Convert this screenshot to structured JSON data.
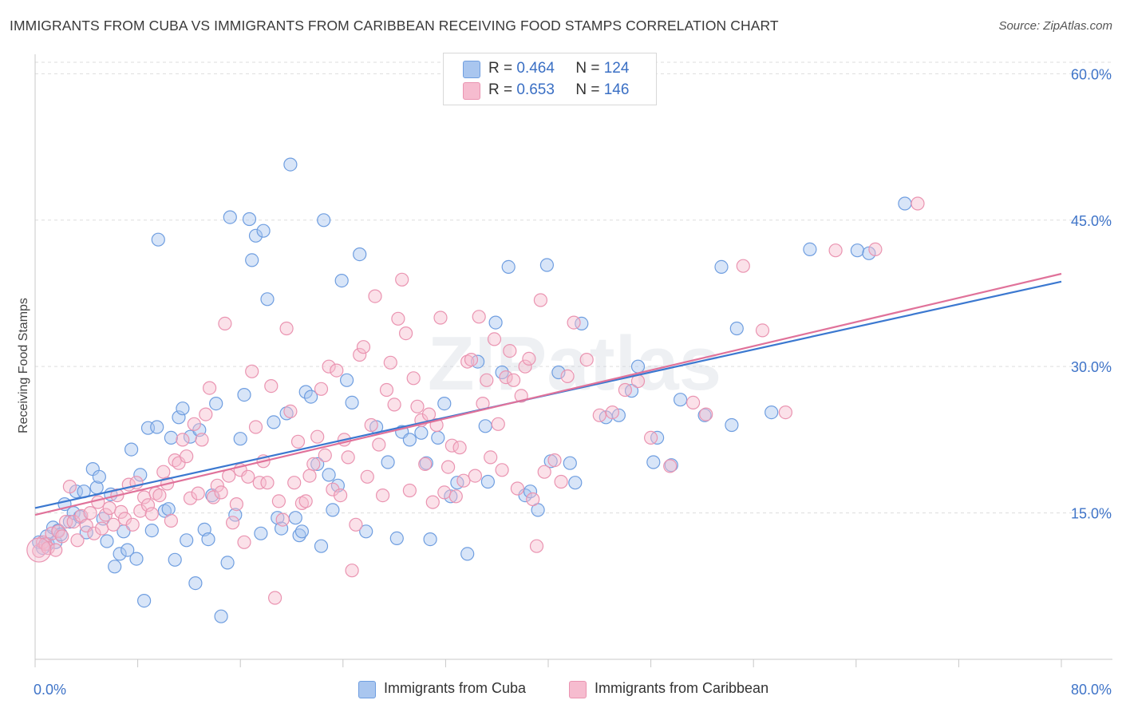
{
  "title": "IMMIGRANTS FROM CUBA VS IMMIGRANTS FROM CARIBBEAN RECEIVING FOOD STAMPS CORRELATION CHART",
  "source": "Source: ZipAtlas.com",
  "watermark": "ZIPatlas",
  "legend": {
    "r_label": "R =",
    "n_label": "N =",
    "cuba": {
      "r": "0.464",
      "n": "124"
    },
    "caribbean": {
      "r": "0.653",
      "n": "146"
    }
  },
  "colors": {
    "cuba_fill": "#a9c6ef",
    "cuba_stroke": "#6f9ee0",
    "cuba_line": "#3b78d0",
    "caribbean_fill": "#f6bccf",
    "caribbean_stroke": "#ea94b1",
    "caribbean_line": "#e0729a",
    "tick_label": "#3f74c8",
    "grid": "#dddddd"
  },
  "chart_data": {
    "type": "scatter",
    "title": "IMMIGRANTS FROM CUBA VS IMMIGRANTS FROM CARIBBEAN RECEIVING FOOD STAMPS CORRELATION CHART",
    "xlabel": "",
    "ylabel": "Receiving Food Stamps",
    "xlim": [
      0,
      80
    ],
    "ylim": [
      0,
      61.5
    ],
    "x_tick_labels": [
      "0.0%",
      "80.0%"
    ],
    "y_ticks": [
      15,
      30,
      45,
      60
    ],
    "y_tick_labels": [
      "15.0%",
      "30.0%",
      "45.0%",
      "60.0%"
    ],
    "grid": "horizontal dashed",
    "legend_position": "top-center and bottom",
    "series": [
      {
        "name": "Immigrants from Cuba",
        "r": 0.464,
        "n": 124,
        "trend": {
          "x": [
            0,
            80
          ],
          "y": [
            15.5,
            38.7
          ]
        },
        "points": [
          [
            0.3,
            12.0
          ],
          [
            0.6,
            11.4
          ],
          [
            0.9,
            12.6
          ],
          [
            1.0,
            11.8
          ],
          [
            1.4,
            13.5
          ],
          [
            1.6,
            12.0
          ],
          [
            1.8,
            13.2
          ],
          [
            2.0,
            12.8
          ],
          [
            2.3,
            15.9
          ],
          [
            2.7,
            14.1
          ],
          [
            3.0,
            15.0
          ],
          [
            3.2,
            17.2
          ],
          [
            3.5,
            14.6
          ],
          [
            3.8,
            17.2
          ],
          [
            4.0,
            13.0
          ],
          [
            4.5,
            19.5
          ],
          [
            4.8,
            17.6
          ],
          [
            5.0,
            18.7
          ],
          [
            5.3,
            14.4
          ],
          [
            5.6,
            12.1
          ],
          [
            5.9,
            16.9
          ],
          [
            6.2,
            9.5
          ],
          [
            6.6,
            10.8
          ],
          [
            6.9,
            13.1
          ],
          [
            7.2,
            11.2
          ],
          [
            7.5,
            21.5
          ],
          [
            7.9,
            10.3
          ],
          [
            8.2,
            18.9
          ],
          [
            8.5,
            6.0
          ],
          [
            8.8,
            23.7
          ],
          [
            9.1,
            13.2
          ],
          [
            9.5,
            23.8
          ],
          [
            9.6,
            43.0
          ],
          [
            10.1,
            15.2
          ],
          [
            10.4,
            15.4
          ],
          [
            10.6,
            22.7
          ],
          [
            10.9,
            10.2
          ],
          [
            11.2,
            24.8
          ],
          [
            11.5,
            25.7
          ],
          [
            11.8,
            12.2
          ],
          [
            12.1,
            22.8
          ],
          [
            12.5,
            7.8
          ],
          [
            12.8,
            23.5
          ],
          [
            13.2,
            13.3
          ],
          [
            13.5,
            12.3
          ],
          [
            13.8,
            16.8
          ],
          [
            14.1,
            26.2
          ],
          [
            14.5,
            4.4
          ],
          [
            15.0,
            9.9
          ],
          [
            15.2,
            45.3
          ],
          [
            15.6,
            14.8
          ],
          [
            16.0,
            22.6
          ],
          [
            16.3,
            27.1
          ],
          [
            16.7,
            45.1
          ],
          [
            16.9,
            40.9
          ],
          [
            17.2,
            43.4
          ],
          [
            17.6,
            12.9
          ],
          [
            17.8,
            43.9
          ],
          [
            18.1,
            36.9
          ],
          [
            18.6,
            24.3
          ],
          [
            18.9,
            14.5
          ],
          [
            19.2,
            13.4
          ],
          [
            19.6,
            25.2
          ],
          [
            19.9,
            50.7
          ],
          [
            20.3,
            14.5
          ],
          [
            20.6,
            12.7
          ],
          [
            20.8,
            13.1
          ],
          [
            21.1,
            27.4
          ],
          [
            21.5,
            26.9
          ],
          [
            22.0,
            20.0
          ],
          [
            22.3,
            11.6
          ],
          [
            22.5,
            45.0
          ],
          [
            22.9,
            18.9
          ],
          [
            23.2,
            15.3
          ],
          [
            23.6,
            17.8
          ],
          [
            23.9,
            38.8
          ],
          [
            24.3,
            28.6
          ],
          [
            24.7,
            26.3
          ],
          [
            25.3,
            41.5
          ],
          [
            25.8,
            13.1
          ],
          [
            26.6,
            23.8
          ],
          [
            27.5,
            20.2
          ],
          [
            28.2,
            12.4
          ],
          [
            28.6,
            23.3
          ],
          [
            29.2,
            22.5
          ],
          [
            30.1,
            23.2
          ],
          [
            30.5,
            20.1
          ],
          [
            30.8,
            12.3
          ],
          [
            31.4,
            22.7
          ],
          [
            31.9,
            26.2
          ],
          [
            32.4,
            16.7
          ],
          [
            32.9,
            18.1
          ],
          [
            33.7,
            10.8
          ],
          [
            34.5,
            30.5
          ],
          [
            35.1,
            23.9
          ],
          [
            35.3,
            18.2
          ],
          [
            35.9,
            34.5
          ],
          [
            36.4,
            29.4
          ],
          [
            36.9,
            40.2
          ],
          [
            38.2,
            16.8
          ],
          [
            38.6,
            17.2
          ],
          [
            39.2,
            15.3
          ],
          [
            39.9,
            40.4
          ],
          [
            40.2,
            20.3
          ],
          [
            40.8,
            29.4
          ],
          [
            41.7,
            20.1
          ],
          [
            42.1,
            18.1
          ],
          [
            42.6,
            34.4
          ],
          [
            44.5,
            24.8
          ],
          [
            45.5,
            25.0
          ],
          [
            46.5,
            27.5
          ],
          [
            47.0,
            30.0
          ],
          [
            48.2,
            20.2
          ],
          [
            48.5,
            22.7
          ],
          [
            49.6,
            19.9
          ],
          [
            50.3,
            26.6
          ],
          [
            52.2,
            25.0
          ],
          [
            53.5,
            40.2
          ],
          [
            54.3,
            24.0
          ],
          [
            54.7,
            33.9
          ],
          [
            57.4,
            25.3
          ],
          [
            60.4,
            42.0
          ],
          [
            64.1,
            41.9
          ],
          [
            65.0,
            41.6
          ],
          [
            67.8,
            46.7
          ]
        ]
      },
      {
        "name": "Immigrants from Caribbean",
        "r": 0.653,
        "n": 146,
        "trend": {
          "x": [
            0,
            80
          ],
          "y": [
            14.8,
            39.5
          ]
        },
        "points": [
          [
            0.3,
            11.1
          ],
          [
            0.6,
            12.0
          ],
          [
            0.8,
            11.8
          ],
          [
            1.0,
            11.4
          ],
          [
            1.3,
            12.9
          ],
          [
            1.6,
            11.2
          ],
          [
            1.8,
            13.1
          ],
          [
            2.1,
            12.6
          ],
          [
            2.4,
            14.1
          ],
          [
            2.7,
            17.7
          ],
          [
            3.0,
            14.1
          ],
          [
            3.3,
            12.2
          ],
          [
            3.6,
            14.7
          ],
          [
            4.0,
            13.7
          ],
          [
            4.3,
            15.0
          ],
          [
            4.6,
            12.9
          ],
          [
            4.9,
            16.1
          ],
          [
            5.2,
            13.4
          ],
          [
            5.5,
            14.8
          ],
          [
            5.8,
            15.5
          ],
          [
            6.1,
            13.8
          ],
          [
            6.4,
            16.8
          ],
          [
            6.7,
            15.1
          ],
          [
            7.0,
            14.4
          ],
          [
            7.3,
            17.9
          ],
          [
            7.6,
            13.8
          ],
          [
            7.9,
            18.1
          ],
          [
            8.2,
            15.2
          ],
          [
            8.5,
            16.6
          ],
          [
            8.8,
            15.8
          ],
          [
            9.1,
            14.9
          ],
          [
            9.4,
            17.0
          ],
          [
            9.7,
            16.8
          ],
          [
            10.0,
            19.2
          ],
          [
            10.3,
            18.0
          ],
          [
            10.6,
            14.2
          ],
          [
            10.9,
            20.4
          ],
          [
            11.2,
            20.1
          ],
          [
            11.5,
            22.5
          ],
          [
            11.8,
            20.8
          ],
          [
            12.1,
            16.5
          ],
          [
            12.4,
            24.1
          ],
          [
            12.7,
            17.0
          ],
          [
            13.0,
            22.5
          ],
          [
            13.3,
            25.1
          ],
          [
            13.6,
            27.8
          ],
          [
            13.9,
            16.6
          ],
          [
            14.2,
            17.8
          ],
          [
            14.5,
            17.1
          ],
          [
            14.8,
            34.4
          ],
          [
            15.1,
            18.8
          ],
          [
            15.4,
            14.0
          ],
          [
            15.7,
            15.9
          ],
          [
            16.0,
            19.4
          ],
          [
            16.3,
            12.0
          ],
          [
            16.6,
            18.7
          ],
          [
            16.9,
            29.5
          ],
          [
            17.2,
            23.8
          ],
          [
            17.5,
            18.1
          ],
          [
            17.8,
            20.3
          ],
          [
            18.1,
            18.1
          ],
          [
            18.4,
            28.0
          ],
          [
            18.7,
            6.3
          ],
          [
            19.0,
            16.2
          ],
          [
            19.3,
            14.3
          ],
          [
            19.6,
            33.9
          ],
          [
            19.9,
            25.4
          ],
          [
            20.2,
            18.1
          ],
          [
            20.5,
            22.3
          ],
          [
            20.8,
            16.0
          ],
          [
            21.1,
            16.2
          ],
          [
            21.4,
            18.8
          ],
          [
            21.7,
            20.0
          ],
          [
            22.0,
            22.8
          ],
          [
            22.3,
            27.7
          ],
          [
            22.6,
            20.9
          ],
          [
            22.9,
            30.0
          ],
          [
            23.2,
            17.4
          ],
          [
            23.5,
            29.6
          ],
          [
            23.8,
            16.8
          ],
          [
            24.1,
            22.5
          ],
          [
            24.4,
            20.7
          ],
          [
            24.7,
            9.1
          ],
          [
            25.0,
            13.8
          ],
          [
            25.3,
            31.2
          ],
          [
            25.6,
            32.0
          ],
          [
            25.9,
            18.7
          ],
          [
            26.2,
            24.0
          ],
          [
            26.5,
            37.2
          ],
          [
            26.8,
            22.0
          ],
          [
            27.1,
            16.8
          ],
          [
            27.4,
            27.6
          ],
          [
            27.7,
            30.4
          ],
          [
            28.0,
            26.1
          ],
          [
            28.3,
            34.9
          ],
          [
            28.6,
            38.9
          ],
          [
            28.9,
            33.4
          ],
          [
            29.2,
            17.3
          ],
          [
            29.5,
            28.8
          ],
          [
            29.8,
            25.9
          ],
          [
            30.1,
            24.5
          ],
          [
            30.4,
            20.0
          ],
          [
            30.7,
            25.1
          ],
          [
            31.0,
            16.1
          ],
          [
            31.3,
            24.0
          ],
          [
            31.6,
            35.0
          ],
          [
            31.9,
            17.1
          ],
          [
            32.2,
            19.7
          ],
          [
            32.5,
            21.9
          ],
          [
            32.8,
            16.7
          ],
          [
            33.1,
            21.7
          ],
          [
            33.4,
            18.3
          ],
          [
            33.7,
            30.5
          ],
          [
            34.0,
            30.7
          ],
          [
            34.3,
            18.8
          ],
          [
            34.6,
            35.1
          ],
          [
            34.9,
            26.2
          ],
          [
            35.2,
            28.6
          ],
          [
            35.5,
            20.7
          ],
          [
            35.8,
            32.8
          ],
          [
            36.1,
            24.1
          ],
          [
            36.4,
            19.4
          ],
          [
            36.7,
            28.9
          ],
          [
            37.0,
            31.6
          ],
          [
            37.3,
            28.6
          ],
          [
            37.6,
            17.5
          ],
          [
            37.9,
            27.0
          ],
          [
            38.2,
            30.0
          ],
          [
            38.5,
            30.8
          ],
          [
            38.8,
            16.4
          ],
          [
            39.1,
            11.6
          ],
          [
            39.4,
            36.8
          ],
          [
            39.7,
            19.2
          ],
          [
            40.5,
            20.4
          ],
          [
            41.0,
            18.2
          ],
          [
            41.5,
            29.0
          ],
          [
            42.0,
            34.5
          ],
          [
            43.0,
            30.7
          ],
          [
            44.0,
            25.0
          ],
          [
            45.0,
            25.3
          ],
          [
            46.0,
            27.6
          ],
          [
            47.0,
            28.5
          ],
          [
            48.0,
            22.7
          ],
          [
            49.5,
            19.8
          ],
          [
            51.3,
            26.3
          ],
          [
            52.3,
            25.1
          ],
          [
            55.2,
            40.3
          ],
          [
            56.7,
            33.7
          ],
          [
            58.5,
            25.3
          ],
          [
            62.4,
            41.9
          ],
          [
            65.5,
            42.0
          ],
          [
            68.8,
            46.7
          ]
        ]
      }
    ]
  },
  "bottom_legend": {
    "cuba_label": "Immigrants from Cuba",
    "caribbean_label": "Immigrants from Caribbean"
  }
}
